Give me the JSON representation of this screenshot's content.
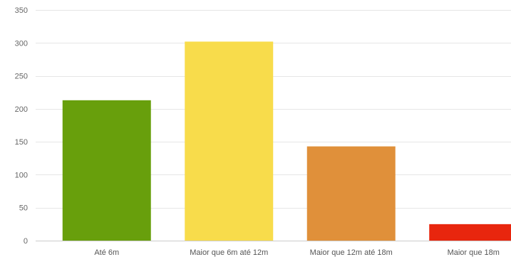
{
  "chart_data": {
    "type": "bar",
    "categories": [
      "Até 6m",
      "Maior que 6m até 12m",
      "Maior que 12m até 18m",
      "Maior que 18m"
    ],
    "values": [
      213,
      302,
      143,
      25
    ],
    "colors": [
      "#689f0c",
      "#f8dc4b",
      "#e0903a",
      "#e8260e"
    ],
    "ylim": [
      0,
      350
    ],
    "yticks": [
      0,
      50,
      100,
      150,
      200,
      250,
      300,
      350
    ],
    "grid": true,
    "title": "",
    "xlabel": "",
    "ylabel": ""
  }
}
